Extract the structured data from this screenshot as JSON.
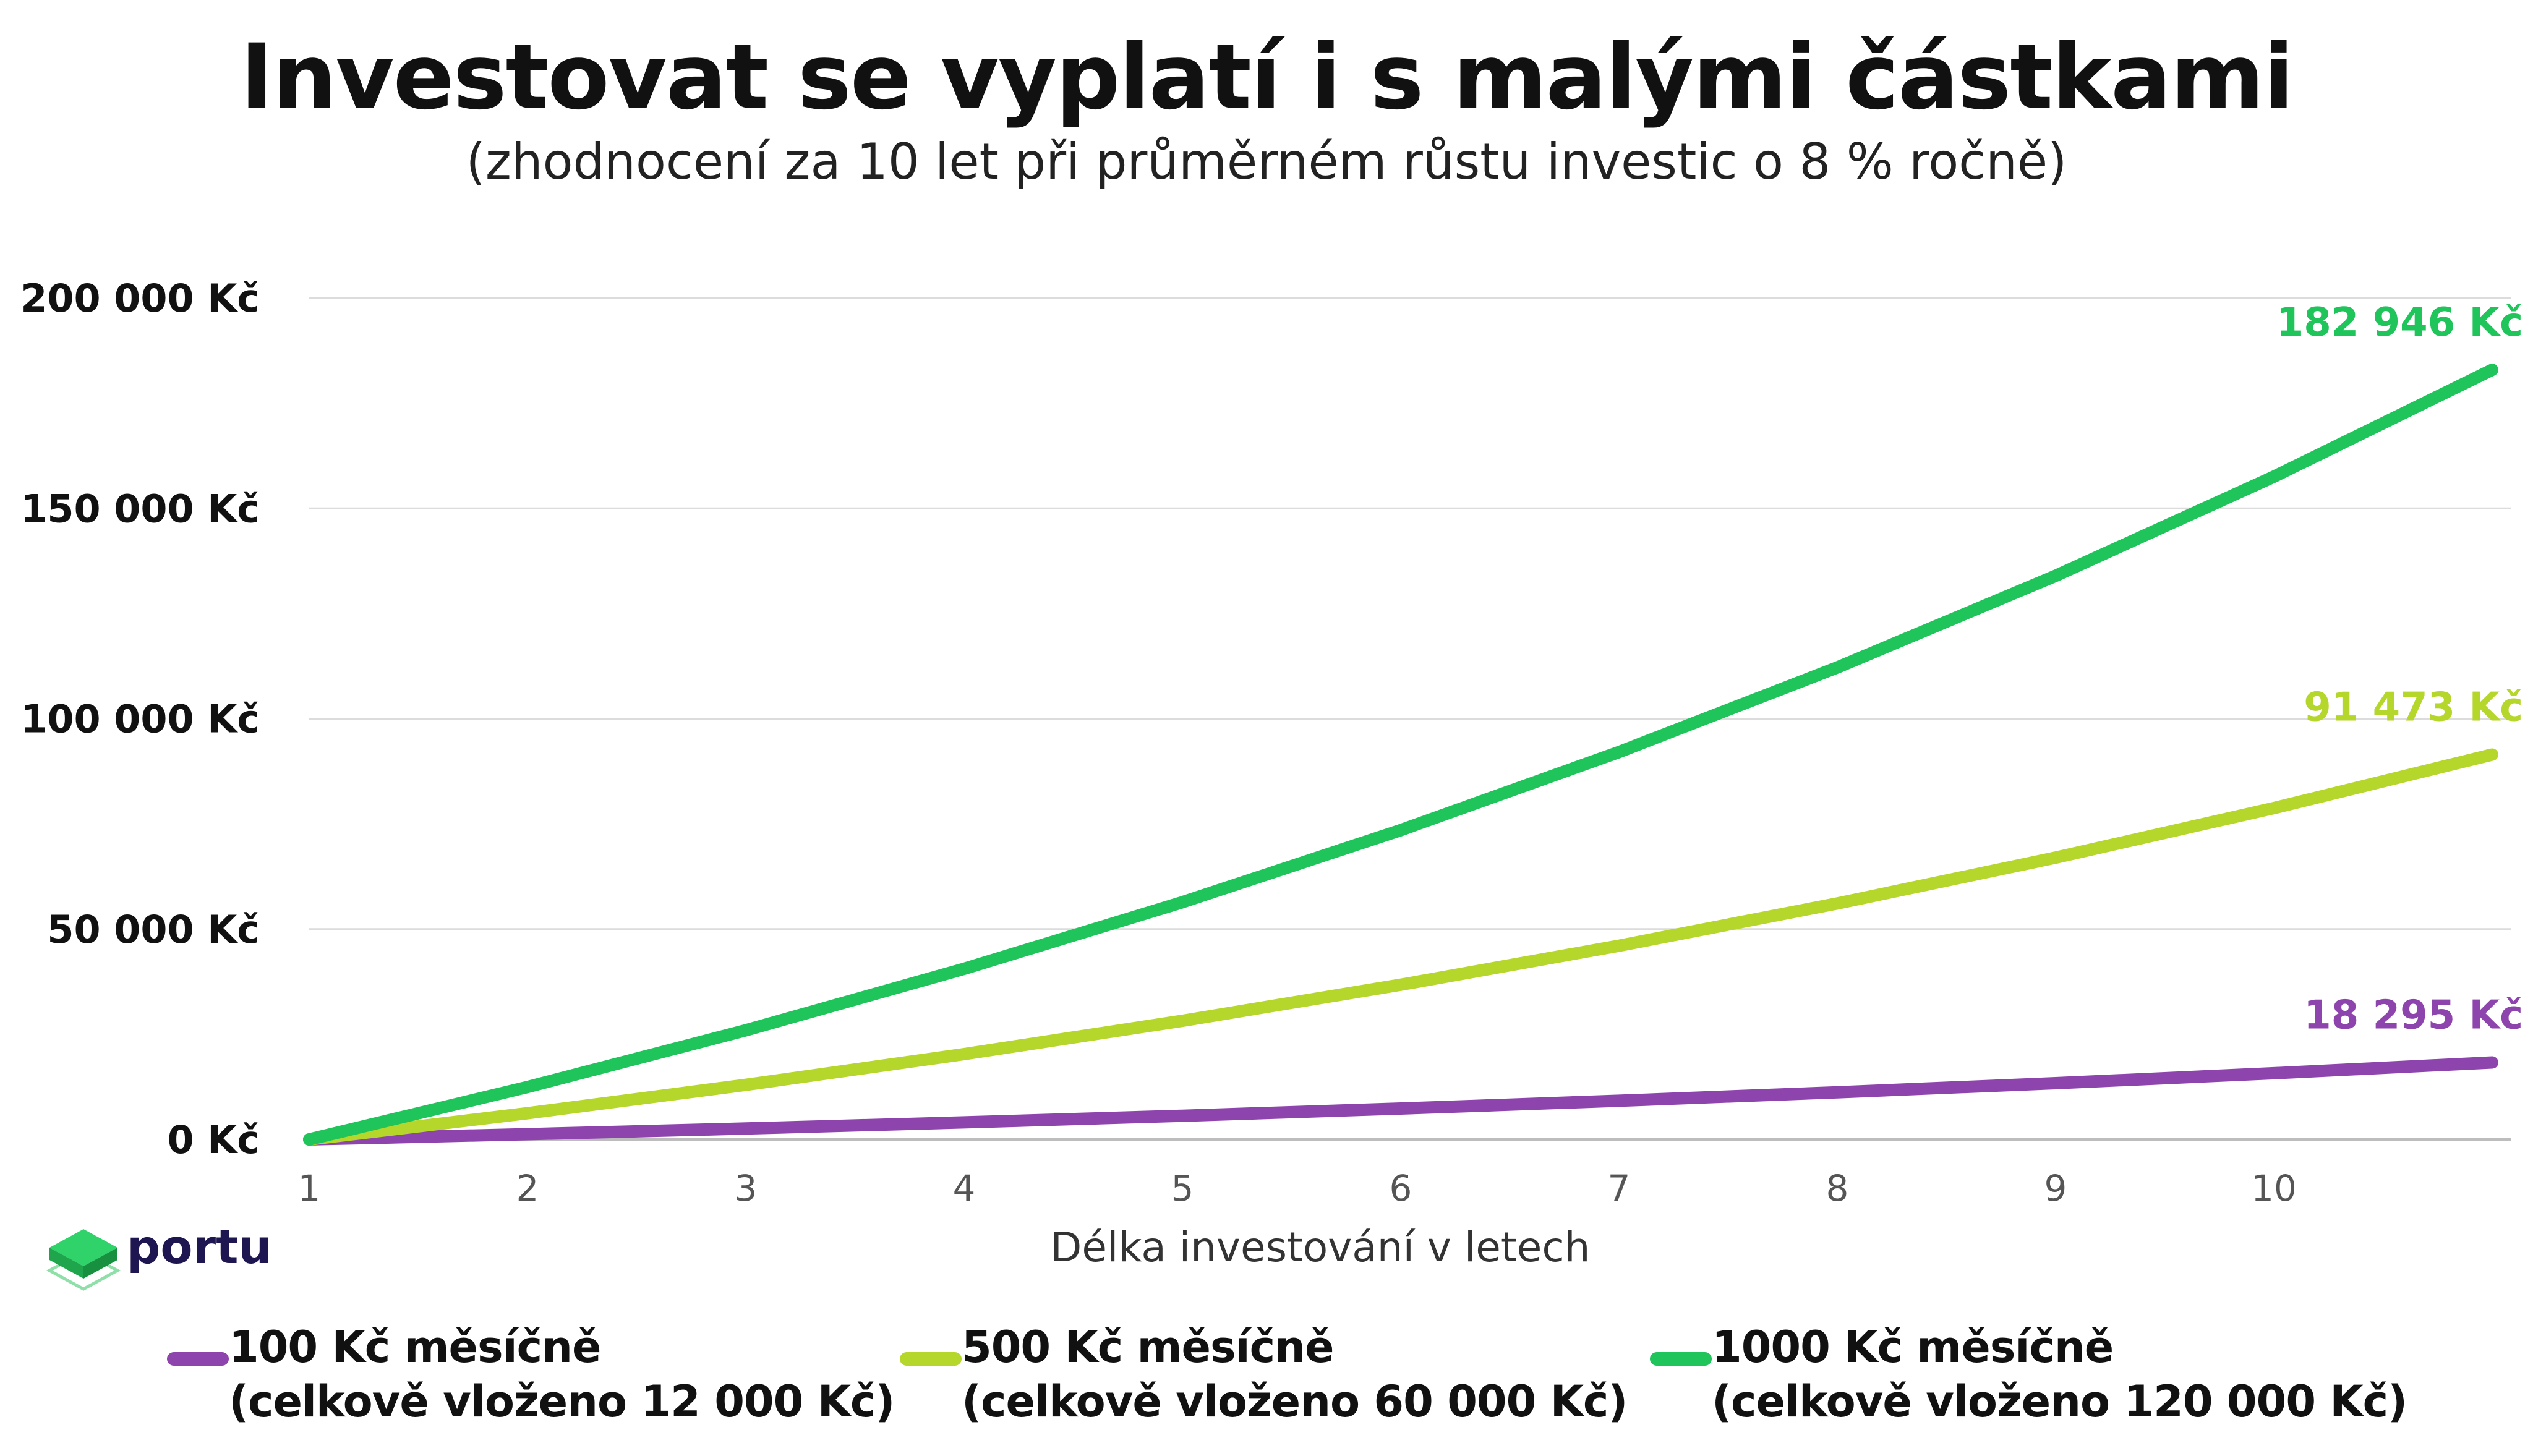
{
  "title": "Investovat se vyplatí i s malými částkami",
  "subtitle": "(zhodnocení za 10 let při průměrném růstu investic o 8 % ročně)",
  "logo": {
    "text": "portu",
    "icon": "green-cube-icon"
  },
  "chart_data": {
    "type": "line",
    "xlabel": "Délka investování v letech",
    "ylabel": "",
    "grid": true,
    "legend_position": "bottom",
    "xlim": [
      1,
      11
    ],
    "ylim": [
      0,
      200000
    ],
    "x_ticks": [
      1,
      2,
      3,
      4,
      5,
      6,
      7,
      8,
      9,
      10
    ],
    "y_ticks": [
      "0 Kč",
      "50 000 Kč",
      "100 000 Kč",
      "150 000 Kč",
      "200 000 Kč"
    ],
    "y_tick_values": [
      0,
      50000,
      100000,
      150000,
      200000
    ],
    "x": [
      1,
      2,
      3,
      4,
      5,
      6,
      7,
      8,
      9,
      10,
      11
    ],
    "series": [
      {
        "name": "100 Kč měsíčně",
        "subname": "(celkově vloženo 12 000 Kč)",
        "color": "#8e44ad",
        "values": [
          0,
          1246,
          2595,
          4054,
          5634,
          7345,
          9198,
          11205,
          13378,
          15732,
          18295
        ],
        "end_label": "18 295 Kč"
      },
      {
        "name": "500 Kč měsíčně",
        "subname": "(celkově vloženo 60 000 Kč)",
        "color": "#b5d62a",
        "values": [
          0,
          6229,
          12975,
          20281,
          28193,
          36762,
          46042,
          56092,
          66977,
          78765,
          91473
        ],
        "end_label": "91 473 Kč"
      },
      {
        "name": "1000 Kč měsíčně",
        "subname": "(celkově vloženo 120 000 Kč)",
        "color": "#1fc55a",
        "values": [
          0,
          12458,
          25950,
          40562,
          56387,
          73524,
          92084,
          112184,
          133953,
          157530,
          182946
        ],
        "end_label": "182 946 Kč"
      }
    ]
  }
}
